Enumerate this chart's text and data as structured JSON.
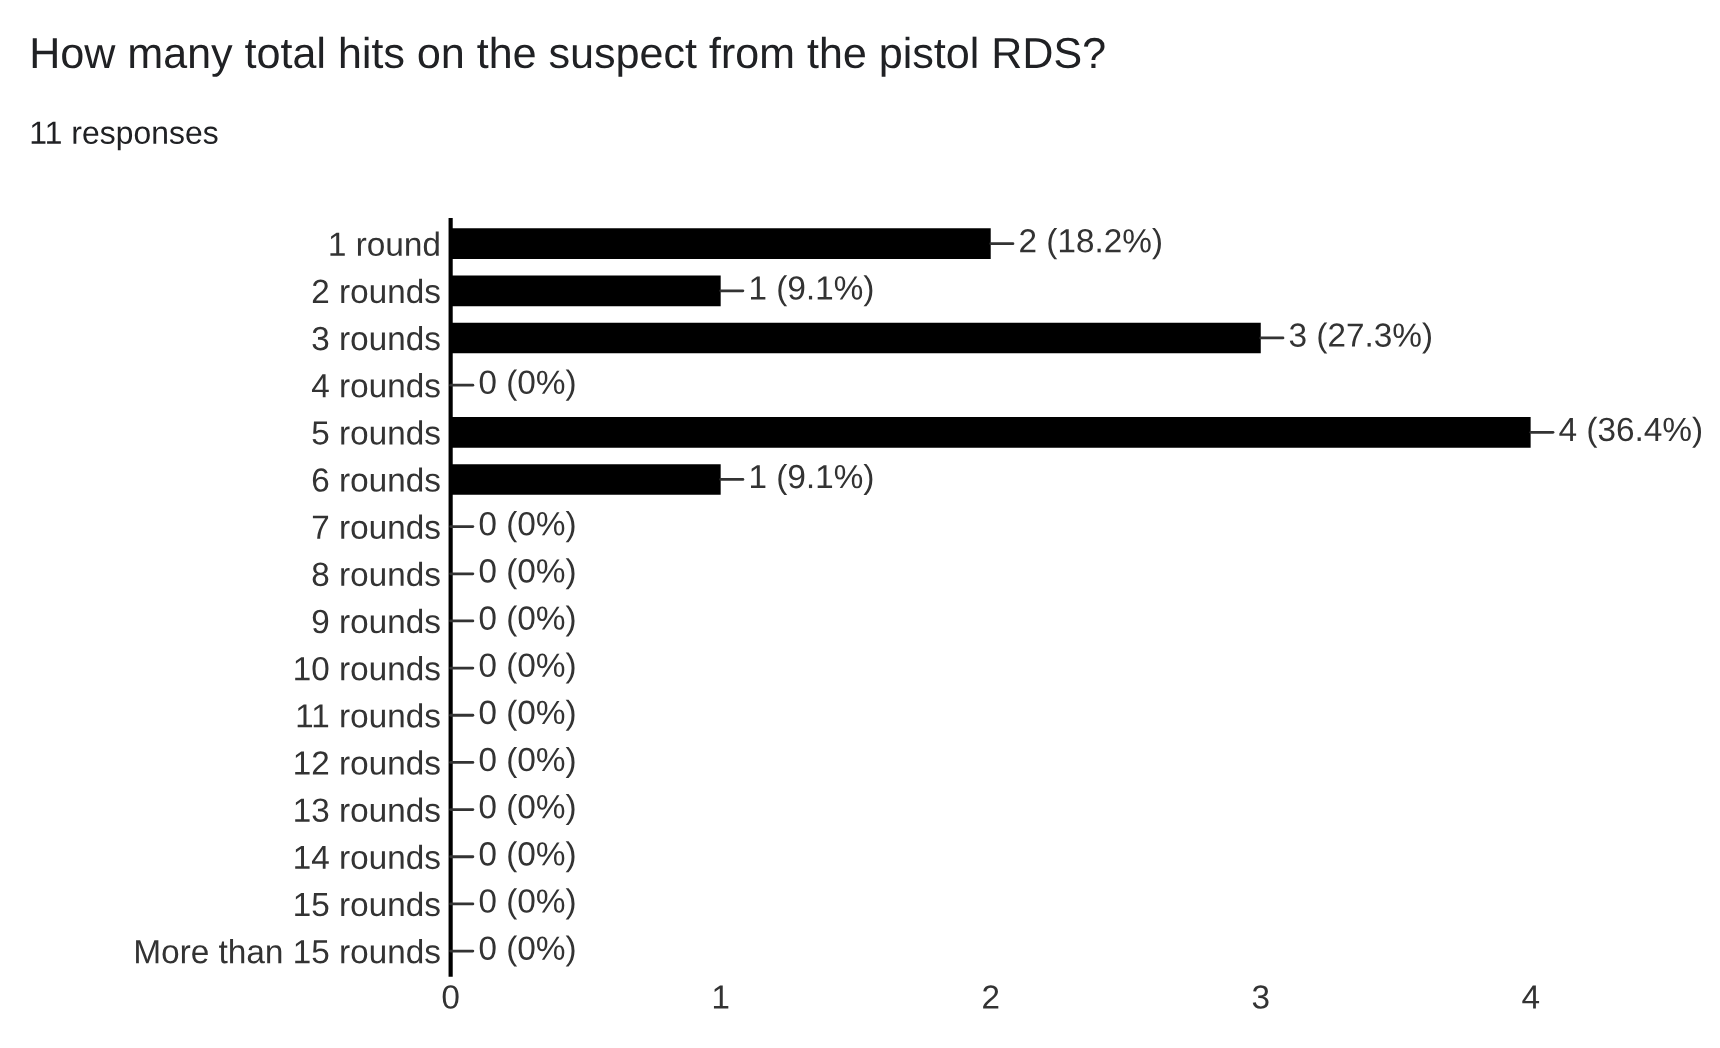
{
  "chart_data": {
    "type": "bar",
    "orientation": "horizontal",
    "title": "How many total hits on the suspect from the pistol RDS?",
    "subtitle": "11 responses",
    "categories": [
      "1 round",
      "2 rounds",
      "3 rounds",
      "4 rounds",
      "5 rounds",
      "6 rounds",
      "7 rounds",
      "8 rounds",
      "9 rounds",
      "10 rounds",
      "11 rounds",
      "12 rounds",
      "13 rounds",
      "14 rounds",
      "15 rounds",
      "More than 15 rounds"
    ],
    "values": [
      2,
      1,
      3,
      0,
      4,
      1,
      0,
      0,
      0,
      0,
      0,
      0,
      0,
      0,
      0,
      0
    ],
    "value_labels": [
      "2 (18.2%)",
      "1 (9.1%)",
      "3 (27.3%)",
      "0 (0%)",
      "4 (36.4%)",
      "1 (9.1%)",
      "0 (0%)",
      "0 (0%)",
      "0 (0%)",
      "0 (0%)",
      "0 (0%)",
      "0 (0%)",
      "0 (0%)",
      "0 (0%)",
      "0 (0%)",
      "0 (0%)"
    ],
    "color": "#000000",
    "xlim": [
      0,
      4
    ],
    "xticks": [
      0,
      1,
      2,
      3,
      4
    ],
    "grid": false,
    "legend": false
  }
}
